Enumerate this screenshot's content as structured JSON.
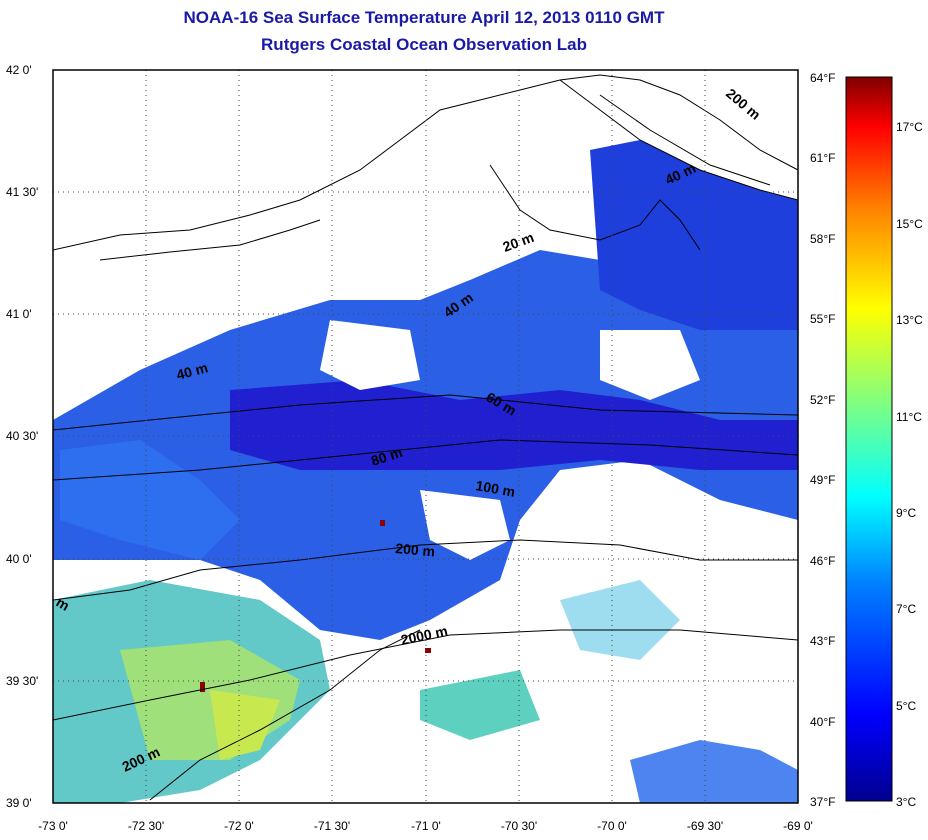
{
  "title_line1": "NOAA-16 Sea Surface Temperature April 12, 2013 0110 GMT",
  "title_line2": "Rutgers Coastal Ocean Observation Lab",
  "map": {
    "lon_labels": [
      "-73 0'",
      "-72 30'",
      "-72 0'",
      "-71 30'",
      "-71 0'",
      "-70 30'",
      "-70 0'",
      "-69 30'",
      "-69 0'"
    ],
    "lat_labels": [
      "42 0'",
      "41 30'",
      "41 0'",
      "40 30'",
      "40 0'",
      "39 30'",
      "39 0'"
    ],
    "fahrenheit_labels": [
      "64°F",
      "61°F",
      "58°F",
      "55°F",
      "52°F",
      "49°F",
      "46°F",
      "43°F",
      "40°F",
      "37°F"
    ],
    "celsius_labels": [
      "17°C",
      "15°C",
      "13°C",
      "11°C",
      "9°C",
      "7°C",
      "5°C",
      "3°C"
    ],
    "isobath_labels": [
      "200 m",
      "40 m",
      "20 m",
      "40 m",
      "40 m",
      "60 m",
      "80 m",
      "100 m",
      "200 m",
      "2000 m",
      "200 m",
      "m"
    ],
    "colors": {
      "title": "#1a1aa6",
      "coast": "#000000",
      "land": "#ffffff",
      "sst_cold": "#1414d8",
      "sst_mid": "#3c8cf0",
      "sst_warm": "#8cf08c",
      "spot_red": "#8b0000"
    },
    "colorbar_range_c": [
      3,
      18
    ],
    "colorbar_range_f": [
      37,
      64
    ]
  }
}
